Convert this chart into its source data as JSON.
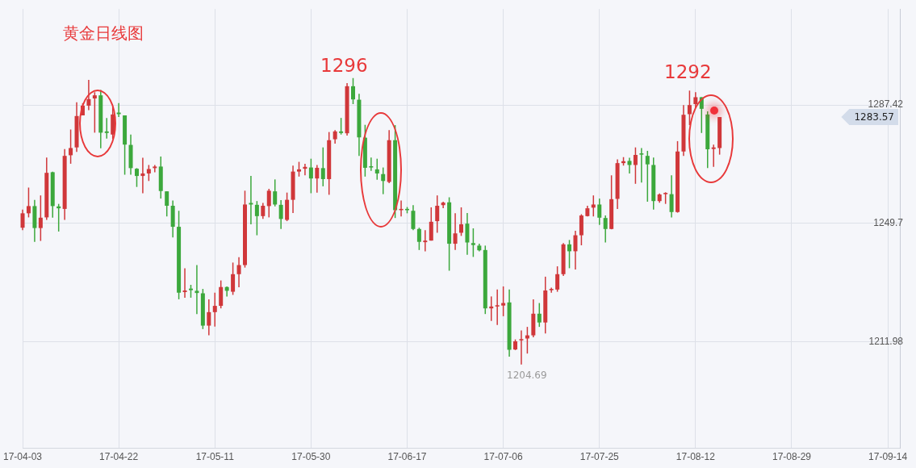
{
  "chart_data": {
    "type": "candlestick",
    "title": "黄金日线图",
    "categories": [
      "17-04-03",
      null,
      null,
      null,
      null,
      null,
      null,
      null,
      null,
      null,
      null,
      null,
      null,
      null,
      null,
      null,
      "17-04-22",
      null,
      null,
      null,
      null,
      null,
      null,
      null,
      null,
      null,
      null,
      null,
      null,
      null,
      null,
      null,
      "17-05-11",
      null,
      null,
      null,
      null,
      null,
      null,
      null,
      null,
      null,
      null,
      null,
      null,
      null,
      null,
      null,
      "17-05-30",
      null,
      null,
      null,
      null,
      null,
      null,
      null,
      null,
      null,
      null,
      null,
      null,
      null,
      null,
      null,
      "17-06-17",
      null,
      null,
      null,
      null,
      null,
      null,
      null,
      null,
      null,
      null,
      null,
      null,
      null,
      null,
      null,
      "17-07-06",
      null,
      null,
      null,
      null,
      null,
      null,
      null,
      null,
      null,
      null,
      null,
      null,
      null,
      null,
      null,
      "17-07-25",
      null,
      null,
      null,
      null,
      null,
      null,
      null,
      null,
      null,
      null,
      null,
      null,
      null,
      null,
      null,
      "17-08-12",
      null,
      null,
      null,
      null,
      null,
      null,
      null,
      null,
      null,
      null,
      null,
      null,
      null,
      null,
      null,
      "17-08-29",
      null,
      null,
      null,
      null,
      null,
      null,
      null,
      null,
      null,
      null,
      null,
      null,
      null,
      null,
      null,
      "17-09-14",
      null,
      null
    ],
    "ohlc": [
      [
        1248.3,
        1254.1,
        1247.5,
        1252.9
      ],
      [
        1252.9,
        1261.1,
        1251.6,
        1255.2
      ],
      [
        1255.2,
        1257.2,
        1243.8,
        1248.2
      ],
      [
        1248.2,
        1258.6,
        1244.1,
        1251.5
      ],
      [
        1251.6,
        1270.7,
        1250.8,
        1265.8
      ],
      [
        1266.0,
        1266.2,
        1251.5,
        1255.2
      ],
      [
        1255.1,
        1255.9,
        1247.1,
        1254.5
      ],
      [
        1254.3,
        1273.4,
        1250.8,
        1271.2
      ],
      [
        1271.4,
        1279.6,
        1268.7,
        1273.7
      ],
      [
        1273.9,
        1288.3,
        1272.5,
        1283.9
      ],
      [
        1284.1,
        1288.0,
        1284.1,
        1287.2
      ],
      [
        1287.2,
        1295.4,
        1285.8,
        1289.3
      ],
      [
        1289.5,
        1291.5,
        1278.6,
        1290.5
      ],
      [
        1290.5,
        1292.2,
        1273.6,
        1278.6
      ],
      [
        1279.0,
        1283.3,
        1276.7,
        1278.5
      ],
      [
        1278.0,
        1287.0,
        1276.6,
        1284.4
      ],
      [
        1285.0,
        1288.0,
        1283.6,
        1284.5
      ],
      [
        1284.1,
        1284.1,
        1265.2,
        1274.8
      ],
      [
        1274.7,
        1278.0,
        1265.2,
        1267.3
      ],
      [
        1267.1,
        1267.3,
        1261.3,
        1264.8
      ],
      [
        1264.8,
        1270.6,
        1259.3,
        1265.6
      ],
      [
        1265.6,
        1268.3,
        1263.2,
        1267.0
      ],
      [
        1267.3,
        1268.3,
        1266.0,
        1267.8
      ],
      [
        1267.8,
        1271.0,
        1257.6,
        1260.0
      ],
      [
        1259.9,
        1259.9,
        1251.9,
        1255.3
      ],
      [
        1255.3,
        1257.0,
        1245.2,
        1248.6
      ],
      [
        1248.6,
        1253.7,
        1225.5,
        1227.6
      ],
      [
        1227.8,
        1235.4,
        1226.0,
        1228.3
      ],
      [
        1228.9,
        1230.1,
        1226.0,
        1228.4
      ],
      [
        1228.2,
        1236.4,
        1220.8,
        1227.5
      ],
      [
        1227.4,
        1228.8,
        1216.0,
        1217.1
      ],
      [
        1217.1,
        1225.5,
        1214.0,
        1221.4
      ],
      [
        1221.4,
        1227.6,
        1216.8,
        1223.4
      ],
      [
        1223.4,
        1231.5,
        1222.6,
        1229.4
      ],
      [
        1229.4,
        1229.6,
        1226.4,
        1228.2
      ],
      [
        1227.9,
        1237.2,
        1226.9,
        1233.5
      ],
      [
        1233.5,
        1238.9,
        1229.3,
        1236.4
      ],
      [
        1236.4,
        1260.1,
        1235.6,
        1255.7
      ],
      [
        1256.2,
        1264.8,
        1249.4,
        1255.7
      ],
      [
        1255.6,
        1256.8,
        1245.9,
        1252.0
      ],
      [
        1252.0,
        1256.2,
        1251.1,
        1255.3
      ],
      [
        1255.2,
        1260.7,
        1251.6,
        1260.1
      ],
      [
        1259.9,
        1263.7,
        1255.1,
        1255.7
      ],
      [
        1255.6,
        1257.1,
        1247.9,
        1251.1
      ],
      [
        1250.8,
        1259.5,
        1250.4,
        1257.2
      ],
      [
        1257.2,
        1268.1,
        1253.0,
        1266.2
      ],
      [
        1266.2,
        1269.3,
        1264.6,
        1266.9
      ],
      [
        1267.1,
        1268.7,
        1265.0,
        1267.7
      ],
      [
        1267.5,
        1270.3,
        1259.3,
        1264.0
      ],
      [
        1264.0,
        1268.3,
        1259.5,
        1267.4
      ],
      [
        1267.3,
        1273.9,
        1261.5,
        1263.8
      ],
      [
        1263.8,
        1278.8,
        1258.8,
        1276.2
      ],
      [
        1276.5,
        1279.4,
        1275.1,
        1279.0
      ],
      [
        1279.0,
        1283.3,
        1278.0,
        1278.5
      ],
      [
        1278.4,
        1294.4,
        1277.7,
        1293.4
      ],
      [
        1293.4,
        1296,
        1287.7,
        1289.2
      ],
      [
        1289.1,
        1291.0,
        1271.2,
        1277.1
      ],
      [
        1277.0,
        1281.1,
        1264.6,
        1267.4
      ],
      [
        1267.9,
        1270.7,
        1266.4,
        1267.5
      ],
      [
        1266.9,
        1270.3,
        1263.6,
        1265.6
      ],
      [
        1265.4,
        1267.5,
        1259.0,
        1263.2
      ],
      [
        1262.9,
        1279.4,
        1262.5,
        1276.2
      ],
      [
        1276.2,
        1281.0,
        1251.4,
        1253.9
      ],
      [
        1253.9,
        1257.0,
        1251.9,
        1254.3
      ],
      [
        1254.3,
        1254.9,
        1252.9,
        1253.9
      ],
      [
        1253.7,
        1255.5,
        1247.5,
        1247.9
      ],
      [
        1247.9,
        1248.3,
        1241.2,
        1243.8
      ],
      [
        1243.7,
        1247.5,
        1240.8,
        1244.2
      ],
      [
        1244.2,
        1254.8,
        1244.2,
        1250.2
      ],
      [
        1250.4,
        1258.6,
        1246.7,
        1255.3
      ],
      [
        1255.5,
        1256.6,
        1254.5,
        1256.3
      ],
      [
        1256.4,
        1258.0,
        1234.6,
        1243.2
      ],
      [
        1243.2,
        1252.9,
        1241.2,
        1246.5
      ],
      [
        1246.7,
        1254.8,
        1245.7,
        1249.4
      ],
      [
        1249.6,
        1253.0,
        1239.7,
        1243.6
      ],
      [
        1243.4,
        1248.1,
        1239.0,
        1242.8
      ],
      [
        1242.6,
        1243.2,
        1240.8,
        1241.1
      ],
      [
        1241.2,
        1242.6,
        1220.8,
        1222.6
      ],
      [
        1222.6,
        1226.4,
        1218.6,
        1223.2
      ],
      [
        1223.2,
        1228.6,
        1217.3,
        1223.6
      ],
      [
        1223.5,
        1229.6,
        1220.1,
        1224.3
      ],
      [
        1224.5,
        1228.6,
        1207.2,
        1209.4
      ],
      [
        1209.5,
        1212.7,
        1209.3,
        1212.1
      ],
      [
        1212.4,
        1215.6,
        1204.69,
        1212.8
      ],
      [
        1213.0,
        1216.7,
        1208.2,
        1214.0
      ],
      [
        1214.0,
        1225.5,
        1213.4,
        1220.9
      ],
      [
        1220.9,
        1224.3,
        1216.7,
        1218.1
      ],
      [
        1218.1,
        1232.7,
        1214.6,
        1228.3
      ],
      [
        1228.4,
        1229.2,
        1227.6,
        1228.8
      ],
      [
        1228.6,
        1236.0,
        1227.9,
        1233.5
      ],
      [
        1233.5,
        1243.4,
        1232.9,
        1243.0
      ],
      [
        1243.0,
        1244.4,
        1235.4,
        1240.8
      ],
      [
        1240.8,
        1247.3,
        1235.0,
        1245.9
      ],
      [
        1245.9,
        1252.6,
        1242.7,
        1252.2
      ],
      [
        1252.0,
        1255.3,
        1251.9,
        1254.5
      ],
      [
        1254.7,
        1258.6,
        1251.9,
        1255.7
      ],
      [
        1255.7,
        1257.6,
        1249.2,
        1251.5
      ],
      [
        1251.4,
        1252.2,
        1243.6,
        1247.9
      ],
      [
        1247.9,
        1265.0,
        1247.8,
        1257.4
      ],
      [
        1257.5,
        1270.1,
        1254.3,
        1268.9
      ],
      [
        1268.9,
        1270.8,
        1268.1,
        1269.5
      ],
      [
        1269.6,
        1270.6,
        1265.6,
        1268.3
      ],
      [
        1268.3,
        1273.9,
        1262.3,
        1271.5
      ],
      [
        1272.0,
        1273.7,
        1262.7,
        1271.6
      ],
      [
        1271.2,
        1272.8,
        1256.6,
        1268.5
      ],
      [
        1268.3,
        1270.7,
        1254.1,
        1256.8
      ],
      [
        1256.8,
        1259.2,
        1256.3,
        1258.9
      ],
      [
        1259.0,
        1259.6,
        1255.9,
        1259.4
      ],
      [
        1259.0,
        1265.0,
        1251.6,
        1253.3
      ],
      [
        1253.3,
        1275.9,
        1253.1,
        1272.6
      ],
      [
        1272.6,
        1287.4,
        1271.2,
        1284.3
      ],
      [
        1284.5,
        1292,
        1281.0,
        1287.4
      ],
      [
        1287.7,
        1291.5,
        1286.6,
        1289.9
      ],
      [
        1289.9,
        1289.9,
        1278.5,
        1286.2
      ],
      [
        1284.4,
        1285.4,
        1267.3,
        1273.3
      ],
      [
        1273.4,
        1274.8,
        1267.7,
        1273.9
      ],
      [
        1273.7,
        1283.57,
        1271.6,
        1283.57
      ],
      null,
      null,
      null,
      null,
      null,
      null,
      null,
      null,
      null,
      null,
      null,
      null,
      null,
      null,
      null,
      null,
      null,
      null,
      null,
      null,
      null,
      null,
      null,
      null,
      null,
      null,
      null,
      null,
      null,
      null
    ],
    "ylim": [
      1178,
      1318
    ],
    "yticks": [
      1211.98,
      1249.7,
      1287.42
    ],
    "grid": true,
    "annotations": [
      "1296",
      "1292",
      "1204.69",
      "1283.57"
    ]
  }
}
